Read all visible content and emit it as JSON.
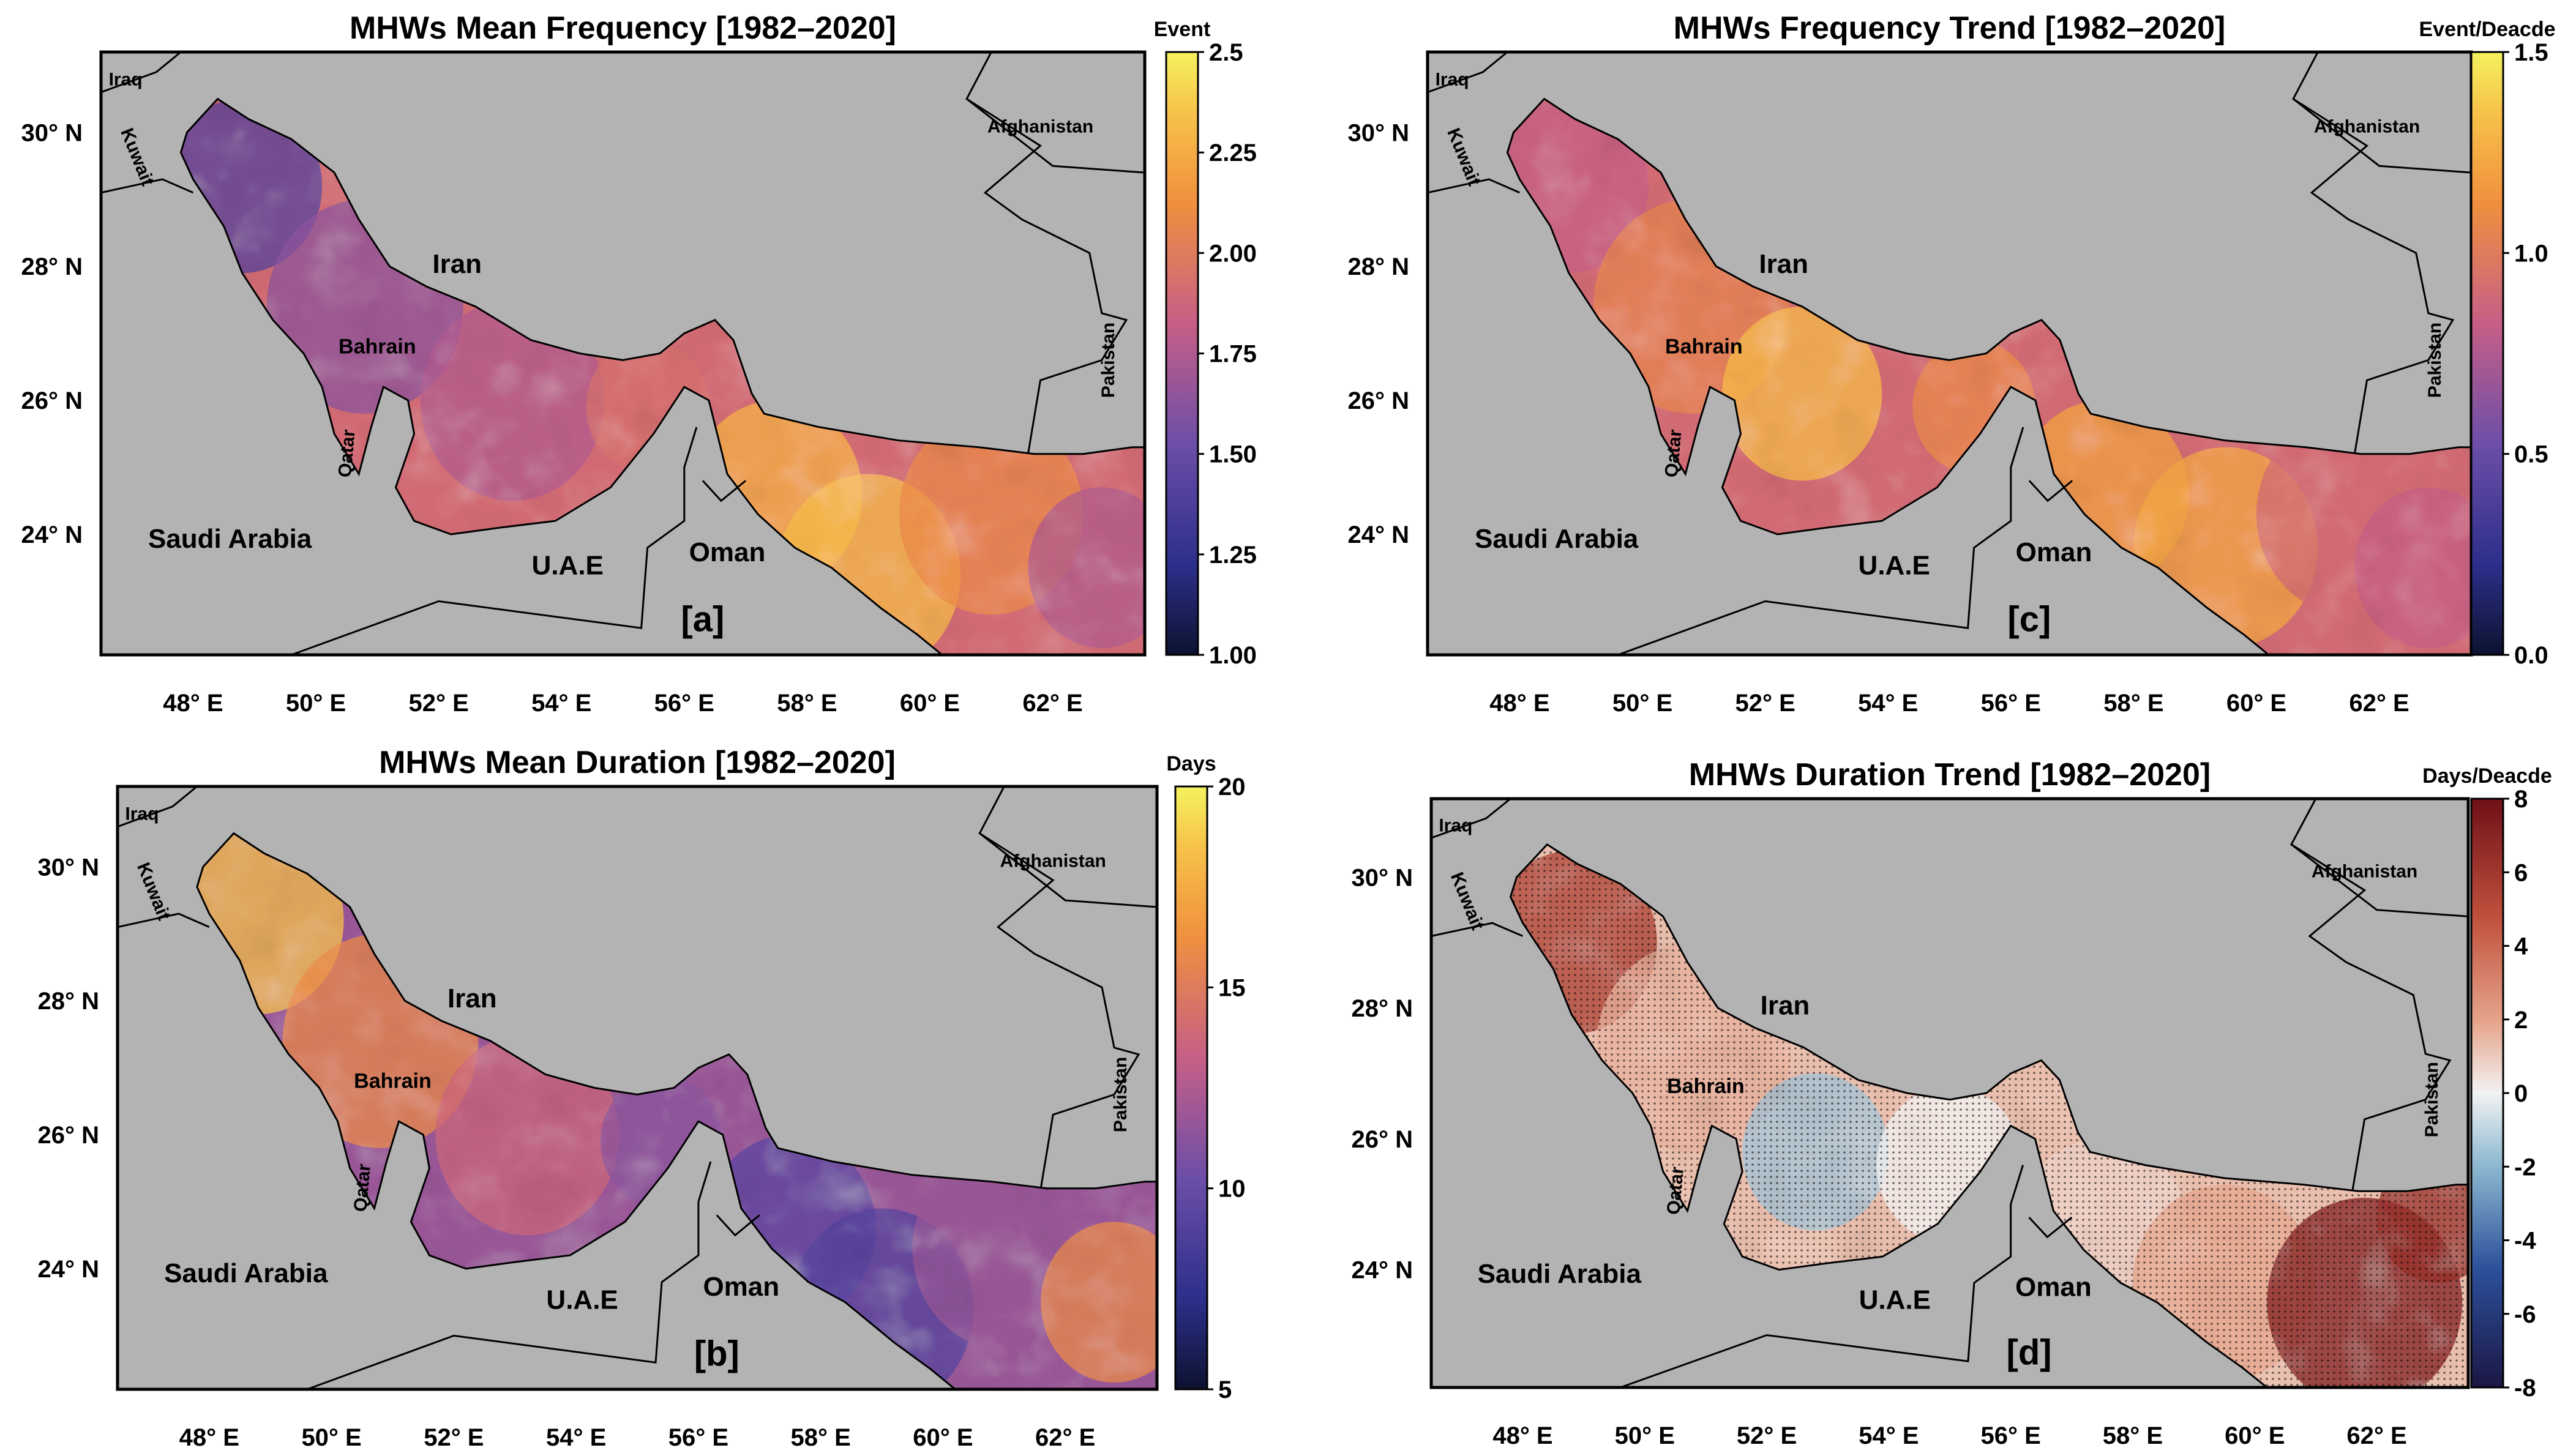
{
  "figure": {
    "lat_labels": [
      "30° N",
      "28° N",
      "26° N",
      "24° N"
    ],
    "lon_labels": [
      "48° E",
      "50° E",
      "52° E",
      "54° E",
      "56° E",
      "58° E",
      "60° E",
      "62° E"
    ],
    "country_labels": [
      "Iraq",
      "Kuwait",
      "Iran",
      "Afghanistan",
      "Bahrain",
      "Qatar",
      "Pakistan",
      "Saudi Arabia",
      "U.A.E",
      "Oman"
    ],
    "land_color": "#b3b3b3",
    "sea_colormap": "plasma-like (dark navy → purple → orange → yellow)",
    "trend_colormap": "diverging (navy → white → dark red)"
  },
  "chart_data": [
    {
      "type": "heatmap",
      "panel": "[a]",
      "title": "MHWs Mean Frequency [1982–2020]",
      "colorbar": {
        "label": "Event",
        "range": [
          1.0,
          2.5
        ],
        "ticks": [
          "2.5",
          "2.25",
          "2.00",
          "1.75",
          "1.50",
          "1.25",
          "1.00"
        ]
      },
      "regional_pattern": {
        "northern_gulf": 1.4,
        "central_gulf": 1.6,
        "strait_of_hormuz": 2.1,
        "gulf_of_oman": 2.3,
        "arabian_sea_east": 1.9
      }
    },
    {
      "type": "heatmap",
      "panel": "[b]",
      "title": "MHWs Mean Duration [1982–2020]",
      "colorbar": {
        "label": "Days",
        "range": [
          5,
          20
        ],
        "ticks": [
          "20",
          "15",
          "10",
          "5"
        ]
      },
      "regional_pattern": {
        "northern_gulf": 18,
        "central_gulf": 14,
        "strait_of_hormuz": 11,
        "gulf_of_oman": 9,
        "arabian_sea_east": 15
      }
    },
    {
      "type": "heatmap",
      "panel": "[c]",
      "title": "MHWs Frequency Trend [1982–2020]",
      "colorbar": {
        "label": "Event/Deacde",
        "range": [
          0.0,
          1.5
        ],
        "ticks": [
          "1.5",
          "1.0",
          "0.5",
          "0.0"
        ]
      },
      "regional_pattern": {
        "northern_gulf": 0.9,
        "central_gulf": 1.25,
        "strait_of_hormuz": 1.1,
        "gulf_of_oman": 1.2,
        "arabian_sea_east": 0.95
      }
    },
    {
      "type": "heatmap",
      "panel": "[d]",
      "title": "MHWs Duration Trend [1982–2020]",
      "colorbar": {
        "label": "Days/Deacde",
        "range": [
          -8,
          8
        ],
        "ticks": [
          "8",
          "6",
          "4",
          "2",
          "0",
          "-2",
          "-4",
          "-6",
          "-8"
        ]
      },
      "regional_pattern": {
        "northern_gulf": 5,
        "central_gulf": 1,
        "strait_of_hormuz": 0.5,
        "gulf_of_oman": 1.5,
        "arabian_sea_east": 7
      },
      "significance_stippling": true
    }
  ]
}
